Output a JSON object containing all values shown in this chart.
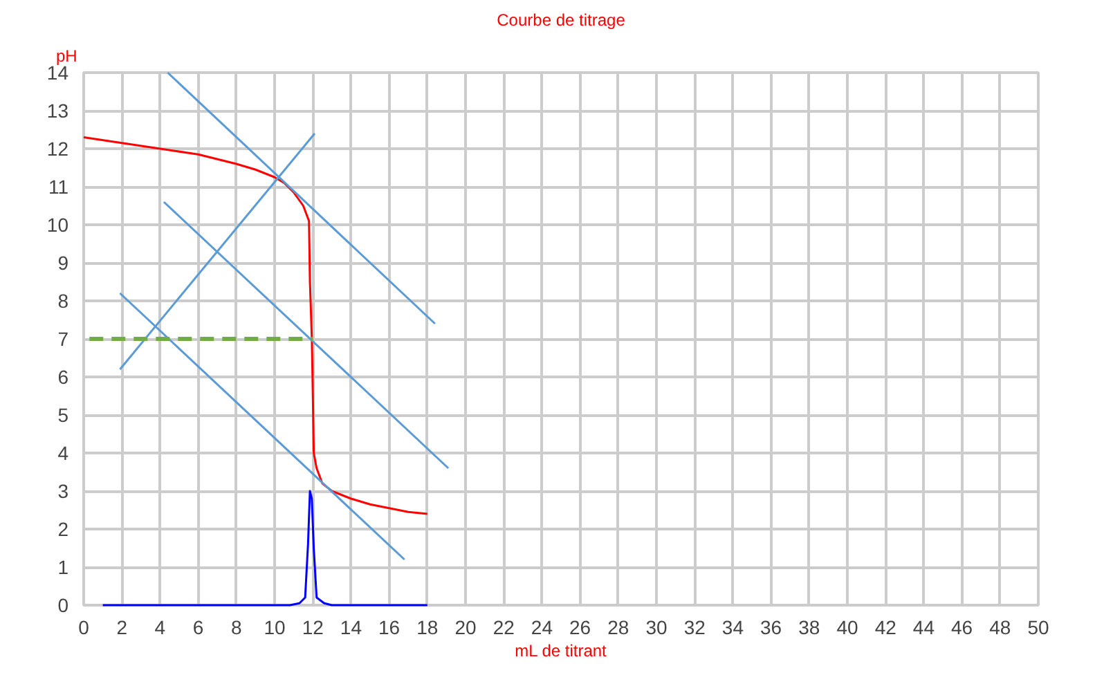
{
  "chart_data": {
    "type": "line",
    "title": "Courbe de titrage",
    "xlabel": "mL de titrant",
    "ylabel": "pH",
    "xlim": [
      0,
      50
    ],
    "ylim": [
      0,
      14
    ],
    "xticks": [
      0,
      2,
      4,
      6,
      8,
      10,
      12,
      14,
      16,
      18,
      20,
      22,
      24,
      26,
      28,
      30,
      32,
      34,
      36,
      38,
      40,
      42,
      44,
      46,
      48,
      50
    ],
    "yticks": [
      0,
      1,
      2,
      3,
      4,
      5,
      6,
      7,
      8,
      9,
      10,
      11,
      12,
      13,
      14
    ],
    "grid": true,
    "marker": "none",
    "series": [
      {
        "color": "#ff0000",
        "x": [
          0,
          2,
          4,
          6,
          8,
          9,
          10,
          10.5,
          11,
          11.5,
          11.8,
          11.85,
          11.95,
          12.0,
          12.05,
          12.2,
          12.5,
          13,
          14,
          15,
          16,
          17,
          18
        ],
        "values": [
          12.3,
          12.15,
          12.0,
          11.85,
          11.6,
          11.45,
          11.25,
          11.1,
          10.85,
          10.5,
          10.1,
          8.5,
          7,
          5.6,
          4.0,
          3.6,
          3.2,
          3.0,
          2.8,
          2.65,
          2.55,
          2.45,
          2.4
        ]
      },
      {
        "color": "#0000ff",
        "x": [
          1,
          10.8,
          11.3,
          11.6,
          11.75,
          11.85,
          11.95,
          12.05,
          12.2,
          12.6,
          13,
          18
        ],
        "values": [
          0,
          0,
          0.05,
          0.2,
          1.6,
          3.0,
          2.8,
          1.5,
          0.2,
          0.05,
          0,
          0
        ]
      },
      {
        "color": "#5b9bd5",
        "x": [
          4.4,
          18.4
        ],
        "values": [
          14,
          7.4
        ]
      },
      {
        "color": "#5b9bd5",
        "x": [
          1.9,
          12.1
        ],
        "values": [
          6.2,
          12.4
        ]
      },
      {
        "color": "#5b9bd5",
        "x": [
          4.2,
          19.1
        ],
        "values": [
          10.6,
          3.6
        ]
      },
      {
        "color": "#5b9bd5",
        "x": [
          1.9,
          16.8
        ],
        "values": [
          8.2,
          1.2
        ]
      },
      {
        "color": "#70ad47",
        "line_style": "dashed",
        "x": [
          0.3,
          12
        ],
        "values": [
          7,
          7
        ]
      }
    ]
  }
}
